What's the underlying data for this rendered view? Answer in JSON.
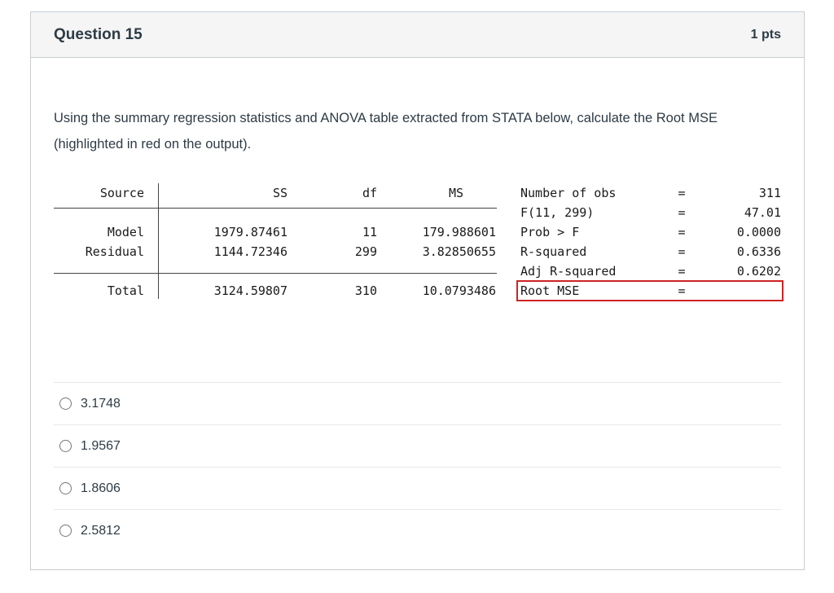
{
  "header": {
    "title": "Question 15",
    "points": "1 pts"
  },
  "question": {
    "prompt": "Using the summary regression statistics and ANOVA table extracted from STATA below, calculate the Root MSE (highlighted in red on the output)."
  },
  "stata": {
    "anova": {
      "headers": [
        "Source",
        "SS",
        "df",
        "MS"
      ],
      "rows": [
        {
          "source": "Model",
          "ss": "1979.87461",
          "df": "11",
          "ms": "179.988601"
        },
        {
          "source": "Residual",
          "ss": "1144.72346",
          "df": "299",
          "ms": "3.82850655"
        }
      ],
      "total": {
        "source": "Total",
        "ss": "3124.59807",
        "df": "310",
        "ms": "10.0793486"
      }
    },
    "stats": [
      {
        "label": "Number of obs",
        "eq": "=",
        "value": "311",
        "highlight": false
      },
      {
        "label": "F(11, 299)",
        "eq": "=",
        "value": "47.01",
        "highlight": false
      },
      {
        "label": "Prob > F",
        "eq": "=",
        "value": "0.0000",
        "highlight": false
      },
      {
        "label": "R-squared",
        "eq": "=",
        "value": "0.6336",
        "highlight": false
      },
      {
        "label": "Adj R-squared",
        "eq": "=",
        "value": "0.6202",
        "highlight": false
      },
      {
        "label": "Root MSE",
        "eq": "=",
        "value": "",
        "highlight": true
      }
    ]
  },
  "options": [
    {
      "label": "3.1748"
    },
    {
      "label": "1.9567"
    },
    {
      "label": "1.8606"
    },
    {
      "label": "2.5812"
    }
  ],
  "colors": {
    "highlight_border": "#cf2323",
    "header_bg": "#f5f5f5",
    "card_border": "#c7cdd1",
    "text": "#2d3b45"
  }
}
